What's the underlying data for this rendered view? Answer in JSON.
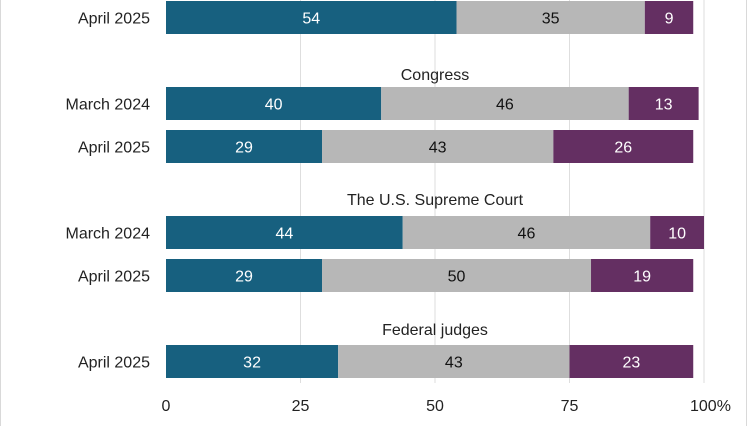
{
  "chart_data": {
    "type": "bar",
    "orientation": "horizontal",
    "stacked": true,
    "xlim": [
      0,
      100
    ],
    "x_ticks": [
      "0",
      "25",
      "50",
      "75",
      "100%"
    ],
    "grid": true,
    "colors": [
      "#17607f",
      "#b7b7b7",
      "#642f62"
    ],
    "groups": [
      {
        "title": "",
        "rows": [
          {
            "label": "April 2025",
            "values": [
              54,
              35,
              9
            ]
          }
        ]
      },
      {
        "title": "Congress",
        "rows": [
          {
            "label": "March 2024",
            "values": [
              40,
              46,
              13
            ]
          },
          {
            "label": "April 2025",
            "values": [
              29,
              43,
              26
            ]
          }
        ]
      },
      {
        "title": "The U.S. Supreme Court",
        "rows": [
          {
            "label": "March 2024",
            "values": [
              44,
              46,
              10
            ]
          },
          {
            "label": "April 2025",
            "values": [
              29,
              50,
              19
            ]
          }
        ]
      },
      {
        "title": "Federal judges",
        "rows": [
          {
            "label": "April 2025",
            "values": [
              32,
              43,
              23
            ]
          }
        ]
      }
    ]
  }
}
